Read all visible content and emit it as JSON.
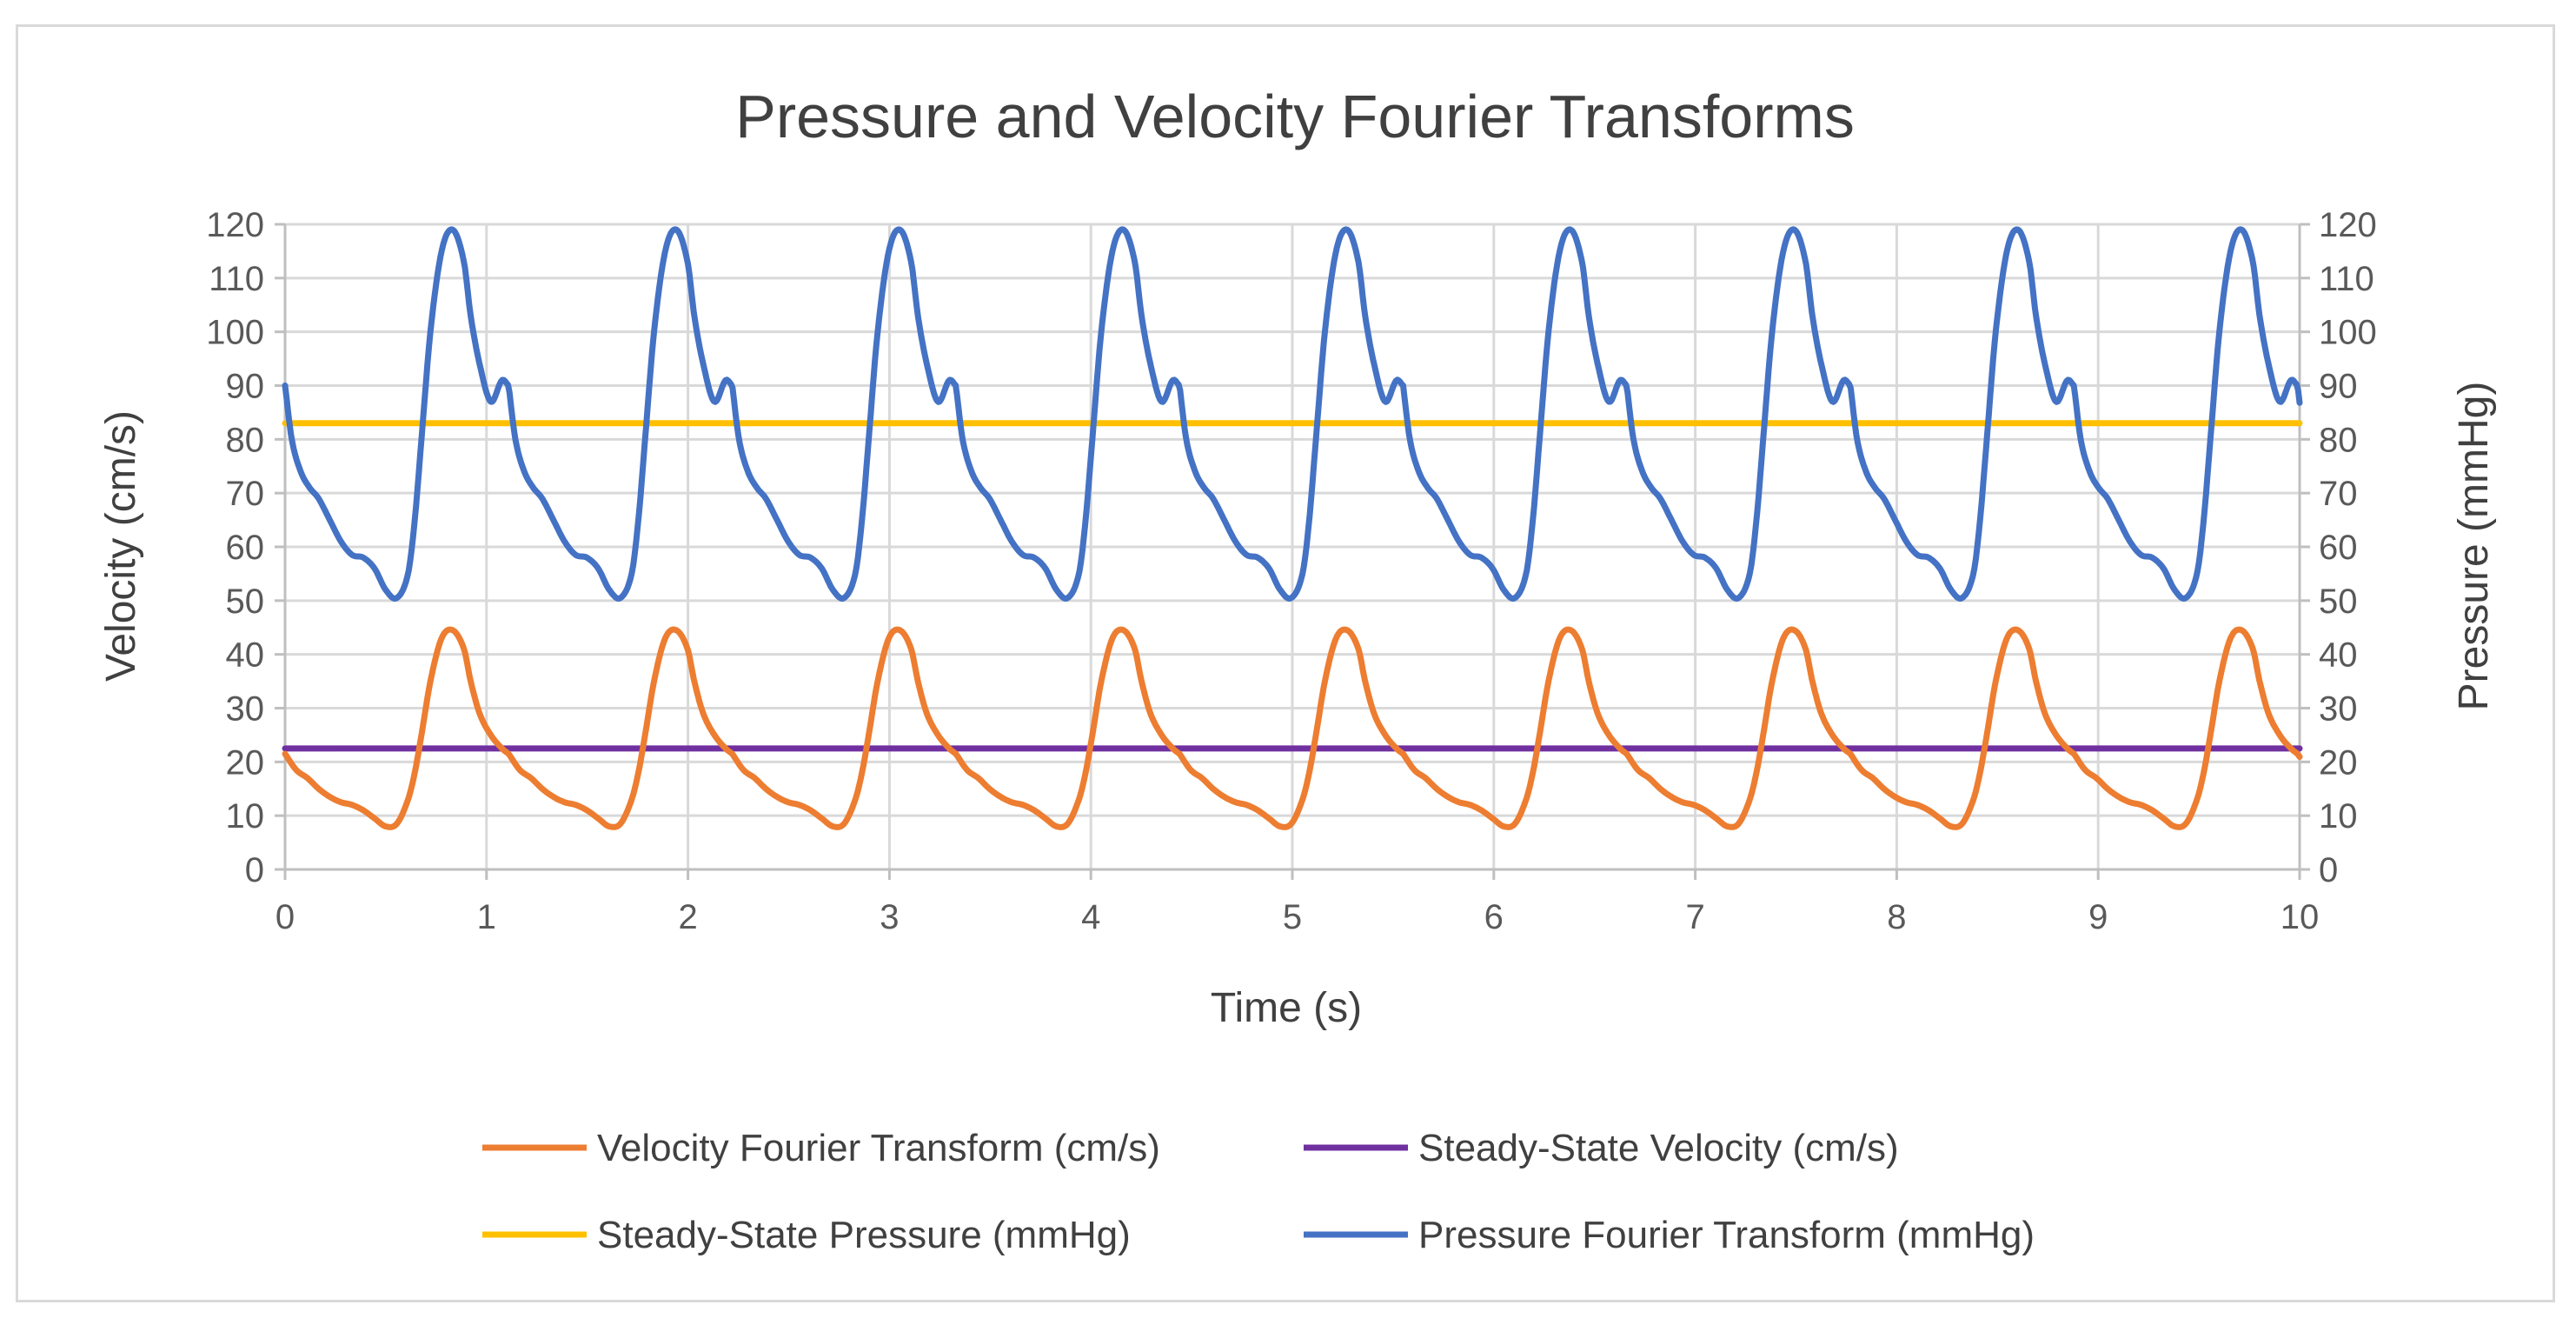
{
  "chart_data": {
    "type": "line",
    "title": "Pressure and Velocity Fourier Transforms",
    "xlabel": "Time (s)",
    "ylabel": "Velocity (cm/s)",
    "y2label": "Pressure (mmHg)",
    "xlim": [
      0,
      10
    ],
    "ylim": [
      0,
      120
    ],
    "y2lim": [
      0,
      120
    ],
    "x_ticks": [
      "0",
      "1",
      "2",
      "3",
      "4",
      "5",
      "6",
      "7",
      "8",
      "9",
      "10"
    ],
    "y_ticks": [
      "0",
      "10",
      "20",
      "30",
      "40",
      "50",
      "60",
      "70",
      "80",
      "90",
      "100",
      "110",
      "120"
    ],
    "y2_ticks": [
      "0",
      "10",
      "20",
      "30",
      "40",
      "50",
      "60",
      "70",
      "80",
      "90",
      "100",
      "110",
      "120"
    ],
    "grid": true,
    "legend_position": "bottom",
    "period_s": 1.11,
    "series": [
      {
        "name": "Velocity Fourier Transform (cm/s)",
        "axis": "left",
        "color": "#ED7D31",
        "cycle_phase": [
          0,
          0.05,
          0.1,
          0.15,
          0.2,
          0.25,
          0.3,
          0.35,
          0.4,
          0.45,
          0.5,
          0.55,
          0.58,
          0.61,
          0.65,
          0.7,
          0.75,
          0.8,
          0.83,
          0.87,
          0.92,
          0.97,
          1.0
        ],
        "cycle_values": [
          21.5,
          18.5,
          17,
          15,
          13.5,
          12.5,
          12,
          11,
          9.5,
          8,
          8.5,
          13,
          18,
          25,
          35,
          43,
          44.5,
          41,
          35,
          29,
          25,
          22.5,
          21.5
        ]
      },
      {
        "name": "Steady-State Velocity (cm/s)",
        "axis": "left",
        "color": "#7030A0",
        "x": [
          0,
          10
        ],
        "values": [
          22.5,
          22.5
        ]
      },
      {
        "name": "Steady-State Pressure (mmHg)",
        "axis": "right",
        "color": "#FFC000",
        "x": [
          0,
          10
        ],
        "values": [
          83,
          83
        ]
      },
      {
        "name": "Pressure Fourier Transform (mmHg)",
        "axis": "right",
        "color": "#4472C4",
        "cycle_phase": [
          0,
          0.03,
          0.07,
          0.11,
          0.15,
          0.2,
          0.25,
          0.3,
          0.35,
          0.4,
          0.45,
          0.5,
          0.55,
          0.58,
          0.61,
          0.65,
          0.7,
          0.75,
          0.8,
          0.83,
          0.87,
          0.92,
          0.97,
          1.0
        ],
        "cycle_values": [
          90,
          80,
          74,
          71,
          69,
          65,
          61,
          58.5,
          58,
          56,
          52,
          50.5,
          55,
          65,
          80,
          100,
          115,
          119,
          113,
          103,
          94,
          87,
          91,
          90
        ]
      }
    ],
    "legend": [
      "Velocity Fourier Transform (cm/s)",
      "Steady-State Velocity (cm/s)",
      "Steady-State Pressure (mmHg)",
      "Pressure Fourier Transform (mmHg)"
    ]
  }
}
